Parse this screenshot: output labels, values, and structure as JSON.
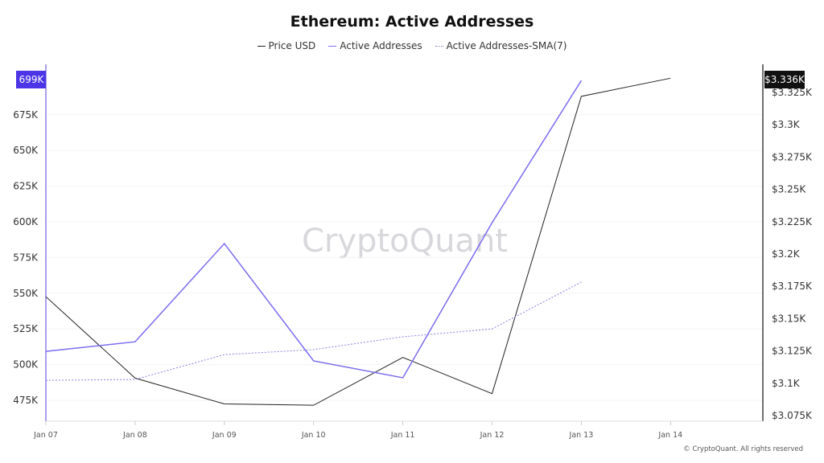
{
  "chart_data": {
    "type": "line",
    "title": "Ethereum: Active Addresses",
    "watermark": "CryptoQuant",
    "copyright": "© CryptoQuant. All rights reserved",
    "categories": [
      "Jan 07",
      "Jan 08",
      "Jan 09",
      "Jan 10",
      "Jan 11",
      "Jan 12",
      "Jan 13",
      "Jan 14"
    ],
    "series": [
      {
        "name": "Price USD",
        "axis": "right",
        "color": "#222222",
        "values": [
          3167,
          3104,
          3084,
          3083,
          3120,
          3092,
          3322,
          3336
        ]
      },
      {
        "name": "Active Addresses",
        "axis": "left",
        "color": "#7b6cf0",
        "values": [
          509300,
          516000,
          584800,
          502600,
          490800,
          599400,
          699000,
          null
        ]
      },
      {
        "name": "Active Addresses-SMA(7)",
        "axis": "left",
        "color": "#8a80e0",
        "dashed": true,
        "values": [
          489000,
          489600,
          507000,
          510500,
          519500,
          525000,
          557800,
          null
        ]
      }
    ],
    "left_axis": {
      "ticks": [
        "475K",
        "500K",
        "525K",
        "550K",
        "575K",
        "600K",
        "625K",
        "650K",
        "675K"
      ],
      "tick_values": [
        475000,
        500000,
        525000,
        550000,
        575000,
        600000,
        625000,
        650000,
        675000
      ],
      "range": [
        467000,
        700000
      ],
      "current_label": "699K",
      "current_color": "#4b35e6"
    },
    "right_axis": {
      "ticks": [
        "$3.075K",
        "$3.1K",
        "$3.125K",
        "$3.15K",
        "$3.175K",
        "$3.2K",
        "$3.225K",
        "$3.25K",
        "$3.275K",
        "$3.3K",
        "$3.325K"
      ],
      "tick_values": [
        3075,
        3100,
        3125,
        3150,
        3175,
        3200,
        3225,
        3250,
        3275,
        3300,
        3325
      ],
      "range": [
        3071,
        3337
      ],
      "current_label": "$3.336K",
      "current_color": "#111111"
    },
    "grid": true,
    "legend_position": "top"
  }
}
